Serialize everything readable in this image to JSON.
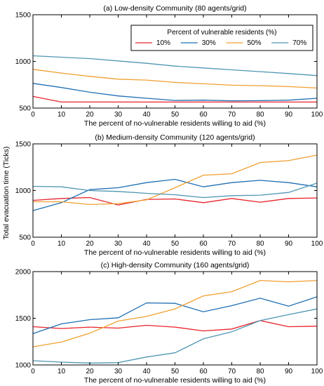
{
  "chart_data": [
    {
      "type": "line",
      "title": "(a) Low-density Community (80 agents/grid)",
      "xlabel": "The percent of no-vulnerable residents willing to aid (%)",
      "ylabel": "Total evacuation time (Ticks)",
      "x": [
        0,
        10,
        20,
        30,
        40,
        50,
        60,
        70,
        80,
        90,
        100
      ],
      "xlim": [
        0,
        100
      ],
      "ylim": [
        500,
        1500
      ],
      "xticks": [
        "0",
        "10",
        "20",
        "30",
        "40",
        "50",
        "60",
        "70",
        "80",
        "90",
        "100"
      ],
      "yticks": [
        "500",
        "1000",
        "1500"
      ],
      "legend": {
        "title": "Percent of vulnerable residents (%)",
        "placement": "top-right"
      },
      "series": [
        {
          "name": "10%",
          "color": "#e8232b",
          "values": [
            625,
            565,
            565,
            565,
            565,
            565,
            565,
            565,
            565,
            565,
            565
          ]
        },
        {
          "name": "30%",
          "color": "#1f6fb4",
          "values": [
            765,
            720,
            670,
            630,
            605,
            582,
            585,
            578,
            580,
            585,
            605
          ]
        },
        {
          "name": "50%",
          "color": "#f0a030",
          "values": [
            915,
            875,
            840,
            810,
            800,
            775,
            760,
            745,
            740,
            730,
            715
          ]
        },
        {
          "name": "70%",
          "color": "#4f97b3",
          "values": [
            1060,
            1045,
            1030,
            1005,
            980,
            950,
            930,
            910,
            890,
            870,
            848
          ]
        }
      ]
    },
    {
      "type": "line",
      "title": "(b) Medium-density Community (120 agents/grid)",
      "xlabel": "The percent of no-vulnerable residents willing to aid (%)",
      "ylabel": "",
      "x": [
        0,
        10,
        20,
        30,
        40,
        50,
        60,
        70,
        80,
        90,
        100
      ],
      "xlim": [
        0,
        100
      ],
      "ylim": [
        500,
        1500
      ],
      "xticks": [
        "0",
        "10",
        "20",
        "30",
        "40",
        "50",
        "60",
        "70",
        "80",
        "90",
        "100"
      ],
      "yticks": [
        "500",
        "1000",
        "1500"
      ],
      "series": [
        {
          "name": "10%",
          "color": "#e8232b",
          "values": [
            895,
            915,
            925,
            845,
            905,
            910,
            870,
            915,
            875,
            915,
            920
          ]
        },
        {
          "name": "30%",
          "color": "#1f6fb4",
          "values": [
            785,
            870,
            1010,
            1030,
            1085,
            1120,
            1040,
            1085,
            1110,
            1085,
            1040
          ]
        },
        {
          "name": "50%",
          "color": "#f0a030",
          "values": [
            880,
            880,
            850,
            860,
            900,
            1030,
            1165,
            1180,
            1300,
            1320,
            1380
          ]
        },
        {
          "name": "70%",
          "color": "#4f97b3",
          "values": [
            1045,
            1040,
            1000,
            990,
            970,
            955,
            925,
            945,
            950,
            980,
            1080
          ]
        }
      ]
    },
    {
      "type": "line",
      "title": "(c) High-density Community (160 agents/grid)",
      "xlabel": "The percent of no-vulnerable residents willing to aid (%)",
      "ylabel": "",
      "x": [
        0,
        10,
        20,
        30,
        40,
        50,
        60,
        70,
        80,
        90,
        100
      ],
      "xlim": [
        0,
        100
      ],
      "ylim": [
        1000,
        2000
      ],
      "xticks": [
        "0",
        "10",
        "20",
        "30",
        "40",
        "50",
        "60",
        "70",
        "80",
        "90",
        "100"
      ],
      "yticks": [
        "1000",
        "1500",
        "2000"
      ],
      "series": [
        {
          "name": "10%",
          "color": "#e8232b",
          "values": [
            1410,
            1390,
            1405,
            1395,
            1425,
            1405,
            1365,
            1385,
            1475,
            1410,
            1415
          ]
        },
        {
          "name": "30%",
          "color": "#1f6fb4",
          "values": [
            1335,
            1440,
            1485,
            1505,
            1665,
            1660,
            1570,
            1635,
            1715,
            1630,
            1730
          ]
        },
        {
          "name": "50%",
          "color": "#f0a030",
          "values": [
            1195,
            1245,
            1340,
            1470,
            1520,
            1600,
            1740,
            1785,
            1905,
            1890,
            1905
          ]
        },
        {
          "name": "70%",
          "color": "#4f97b3",
          "values": [
            1045,
            1030,
            1020,
            1025,
            1085,
            1130,
            1280,
            1355,
            1475,
            1540,
            1600
          ]
        }
      ]
    }
  ]
}
